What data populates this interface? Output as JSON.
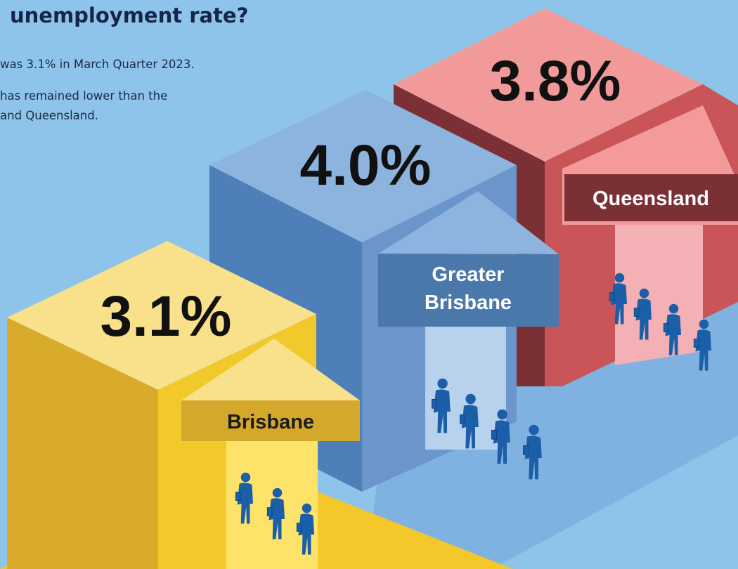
{
  "header": {
    "title": "unemployment rate?",
    "lines": [
      "was 3.1% in March Quarter 2023.",
      "has remained lower than the",
      "and Queensland."
    ]
  },
  "blocks": [
    {
      "label": "Queensland",
      "value": "3.8%"
    },
    {
      "label_lines": [
        "Greater",
        "Brisbane"
      ],
      "value": "4.0%"
    },
    {
      "label": "Brisbane",
      "value": "3.1%"
    }
  ]
}
